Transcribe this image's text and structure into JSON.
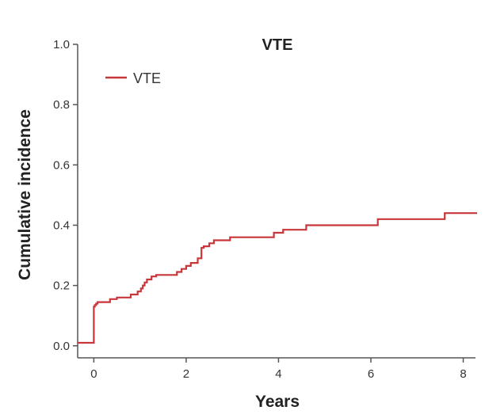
{
  "chart_data": {
    "type": "line",
    "step": true,
    "title": "VTE",
    "xlabel": "Years",
    "ylabel": "Cumulative incidence",
    "xlim": [
      -0.35,
      8.3
    ],
    "ylim": [
      -0.04,
      1.0
    ],
    "x_ticks": [
      0,
      2,
      4,
      6,
      8
    ],
    "y_ticks": [
      0.0,
      0.2,
      0.4,
      0.6,
      0.8,
      1.0
    ],
    "x_tick_labels": [
      "0",
      "2",
      "4",
      "6",
      "8"
    ],
    "y_tick_labels": [
      "0.0",
      "0.2",
      "0.4",
      "0.6",
      "0.8",
      "1.0"
    ],
    "grid": false,
    "legend": {
      "position": "top-left",
      "entries": [
        "VTE"
      ]
    },
    "line_color": "#c8363a",
    "series": [
      {
        "name": "VTE",
        "x": [
          -0.35,
          0.0,
          0.02,
          0.05,
          0.08,
          0.35,
          0.5,
          0.8,
          0.95,
          1.02,
          1.06,
          1.1,
          1.15,
          1.25,
          1.35,
          1.8,
          1.9,
          2.0,
          2.1,
          2.25,
          2.33,
          2.38,
          2.5,
          2.6,
          2.95,
          3.9,
          4.1,
          4.6,
          6.15,
          7.6,
          8.3
        ],
        "y": [
          0.01,
          0.13,
          0.135,
          0.14,
          0.145,
          0.155,
          0.16,
          0.17,
          0.18,
          0.19,
          0.2,
          0.21,
          0.22,
          0.23,
          0.235,
          0.245,
          0.255,
          0.265,
          0.275,
          0.29,
          0.325,
          0.33,
          0.34,
          0.35,
          0.36,
          0.375,
          0.385,
          0.4,
          0.42,
          0.44,
          0.44
        ]
      }
    ]
  }
}
